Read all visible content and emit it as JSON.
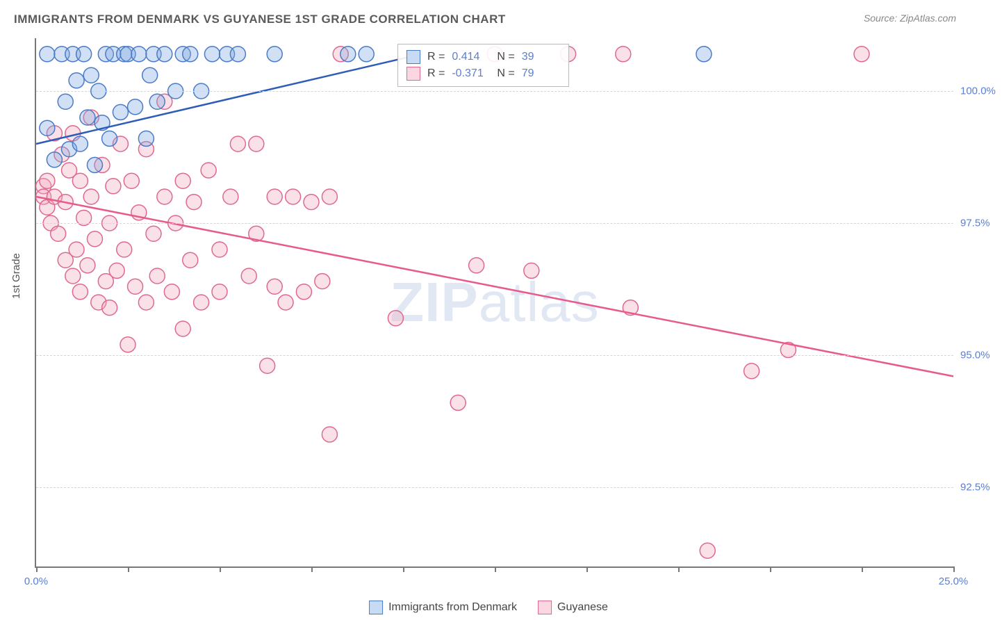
{
  "title": "IMMIGRANTS FROM DENMARK VS GUYANESE 1ST GRADE CORRELATION CHART",
  "source": "Source: ZipAtlas.com",
  "y_axis_title": "1st Grade",
  "watermark_bold": "ZIP",
  "watermark_rest": "atlas",
  "chart": {
    "type": "scatter",
    "xlim": [
      0,
      25
    ],
    "ylim": [
      91.0,
      101.0
    ],
    "y_ticks": [
      92.5,
      95.0,
      97.5,
      100.0
    ],
    "y_tick_labels": [
      "92.5%",
      "95.0%",
      "97.5%",
      "100.0%"
    ],
    "x_ticks": [
      0,
      2.5,
      5,
      7.5,
      10,
      12.5,
      15,
      17.5,
      20,
      22.5,
      25
    ],
    "x_tick_labels_shown": {
      "0": "0.0%",
      "25": "25.0%"
    },
    "background_color": "#ffffff",
    "grid_color": "#d5d5d5",
    "axis_color": "#777777",
    "marker_radius": 11,
    "series": [
      {
        "name": "Immigrants from Denmark",
        "color_fill": "#7ba7e0",
        "color_stroke": "#4a7bc8",
        "R": 0.414,
        "N": 39,
        "trend": {
          "x1": 0,
          "y1": 99.0,
          "x2": 10.5,
          "y2": 100.7,
          "color": "#2e5cb8"
        },
        "points": [
          [
            0.3,
            99.3
          ],
          [
            0.3,
            100.7
          ],
          [
            0.5,
            98.7
          ],
          [
            0.7,
            100.7
          ],
          [
            0.8,
            99.8
          ],
          [
            0.9,
            98.9
          ],
          [
            1.0,
            100.7
          ],
          [
            1.1,
            100.2
          ],
          [
            1.2,
            99.0
          ],
          [
            1.3,
            100.7
          ],
          [
            1.4,
            99.5
          ],
          [
            1.5,
            100.3
          ],
          [
            1.6,
            98.6
          ],
          [
            1.7,
            100.0
          ],
          [
            1.8,
            99.4
          ],
          [
            1.9,
            100.7
          ],
          [
            2.0,
            99.1
          ],
          [
            2.1,
            100.7
          ],
          [
            2.3,
            99.6
          ],
          [
            2.4,
            100.7
          ],
          [
            2.5,
            100.7
          ],
          [
            2.7,
            99.7
          ],
          [
            2.8,
            100.7
          ],
          [
            3.0,
            99.1
          ],
          [
            3.1,
            100.3
          ],
          [
            3.2,
            100.7
          ],
          [
            3.3,
            99.8
          ],
          [
            3.5,
            100.7
          ],
          [
            3.8,
            100.0
          ],
          [
            4.0,
            100.7
          ],
          [
            4.2,
            100.7
          ],
          [
            4.5,
            100.0
          ],
          [
            4.8,
            100.7
          ],
          [
            5.2,
            100.7
          ],
          [
            5.5,
            100.7
          ],
          [
            6.5,
            100.7
          ],
          [
            8.5,
            100.7
          ],
          [
            9.0,
            100.7
          ],
          [
            18.2,
            100.7
          ]
        ]
      },
      {
        "name": "Guyanese",
        "color_fill": "#f0a8bc",
        "color_stroke": "#e06890",
        "R": -0.371,
        "N": 79,
        "trend": {
          "x1": 0,
          "y1": 98.0,
          "x2": 25,
          "y2": 94.6,
          "color": "#e85a8a"
        },
        "points": [
          [
            0.2,
            98.2
          ],
          [
            0.2,
            98.0
          ],
          [
            0.3,
            97.8
          ],
          [
            0.3,
            98.3
          ],
          [
            0.4,
            97.5
          ],
          [
            0.5,
            98.0
          ],
          [
            0.5,
            99.2
          ],
          [
            0.6,
            97.3
          ],
          [
            0.7,
            98.8
          ],
          [
            0.8,
            96.8
          ],
          [
            0.8,
            97.9
          ],
          [
            0.9,
            98.5
          ],
          [
            1.0,
            96.5
          ],
          [
            1.0,
            99.2
          ],
          [
            1.1,
            97.0
          ],
          [
            1.2,
            96.2
          ],
          [
            1.2,
            98.3
          ],
          [
            1.3,
            97.6
          ],
          [
            1.4,
            96.7
          ],
          [
            1.5,
            98.0
          ],
          [
            1.5,
            99.5
          ],
          [
            1.6,
            97.2
          ],
          [
            1.7,
            96.0
          ],
          [
            1.8,
            98.6
          ],
          [
            1.9,
            96.4
          ],
          [
            2.0,
            97.5
          ],
          [
            2.0,
            95.9
          ],
          [
            2.1,
            98.2
          ],
          [
            2.2,
            96.6
          ],
          [
            2.3,
            99.0
          ],
          [
            2.4,
            97.0
          ],
          [
            2.5,
            95.2
          ],
          [
            2.6,
            98.3
          ],
          [
            2.7,
            96.3
          ],
          [
            2.8,
            97.7
          ],
          [
            3.0,
            96.0
          ],
          [
            3.0,
            98.9
          ],
          [
            3.2,
            97.3
          ],
          [
            3.3,
            96.5
          ],
          [
            3.5,
            98.0
          ],
          [
            3.5,
            99.8
          ],
          [
            3.7,
            96.2
          ],
          [
            3.8,
            97.5
          ],
          [
            4.0,
            95.5
          ],
          [
            4.0,
            98.3
          ],
          [
            4.2,
            96.8
          ],
          [
            4.3,
            97.9
          ],
          [
            4.5,
            96.0
          ],
          [
            4.7,
            98.5
          ],
          [
            5.0,
            97.0
          ],
          [
            5.0,
            96.2
          ],
          [
            5.3,
            98.0
          ],
          [
            5.5,
            99.0
          ],
          [
            5.8,
            96.5
          ],
          [
            6.0,
            97.3
          ],
          [
            6.0,
            99.0
          ],
          [
            6.3,
            94.8
          ],
          [
            6.5,
            96.3
          ],
          [
            6.5,
            98.0
          ],
          [
            6.8,
            96.0
          ],
          [
            7.0,
            98.0
          ],
          [
            7.3,
            96.2
          ],
          [
            7.5,
            97.9
          ],
          [
            7.8,
            96.4
          ],
          [
            8.0,
            98.0
          ],
          [
            8.0,
            93.5
          ],
          [
            8.3,
            100.7
          ],
          [
            9.8,
            95.7
          ],
          [
            11.5,
            94.1
          ],
          [
            12.0,
            96.7
          ],
          [
            12.5,
            100.7
          ],
          [
            13.5,
            96.6
          ],
          [
            14.5,
            100.7
          ],
          [
            16.0,
            100.7
          ],
          [
            16.2,
            95.9
          ],
          [
            18.3,
            91.3
          ],
          [
            19.5,
            94.7
          ],
          [
            20.5,
            95.1
          ],
          [
            22.5,
            100.7
          ]
        ]
      }
    ]
  },
  "legend_stats": {
    "rows": [
      {
        "swatch_fill": "#c7dbf5",
        "swatch_border": "#4a7bc8",
        "r_label": "R =",
        "r_val": "0.414",
        "n_label": "N =",
        "n_val": "39"
      },
      {
        "swatch_fill": "#fbd7e2",
        "swatch_border": "#e06890",
        "r_label": "R =",
        "r_val": "-0.371",
        "n_label": "N =",
        "n_val": "79"
      }
    ]
  },
  "bottom_legend": [
    {
      "swatch_fill": "#c7dbf5",
      "swatch_border": "#4a7bc8",
      "label": "Immigrants from Denmark"
    },
    {
      "swatch_fill": "#fbd7e2",
      "swatch_border": "#e06890",
      "label": "Guyanese"
    }
  ]
}
